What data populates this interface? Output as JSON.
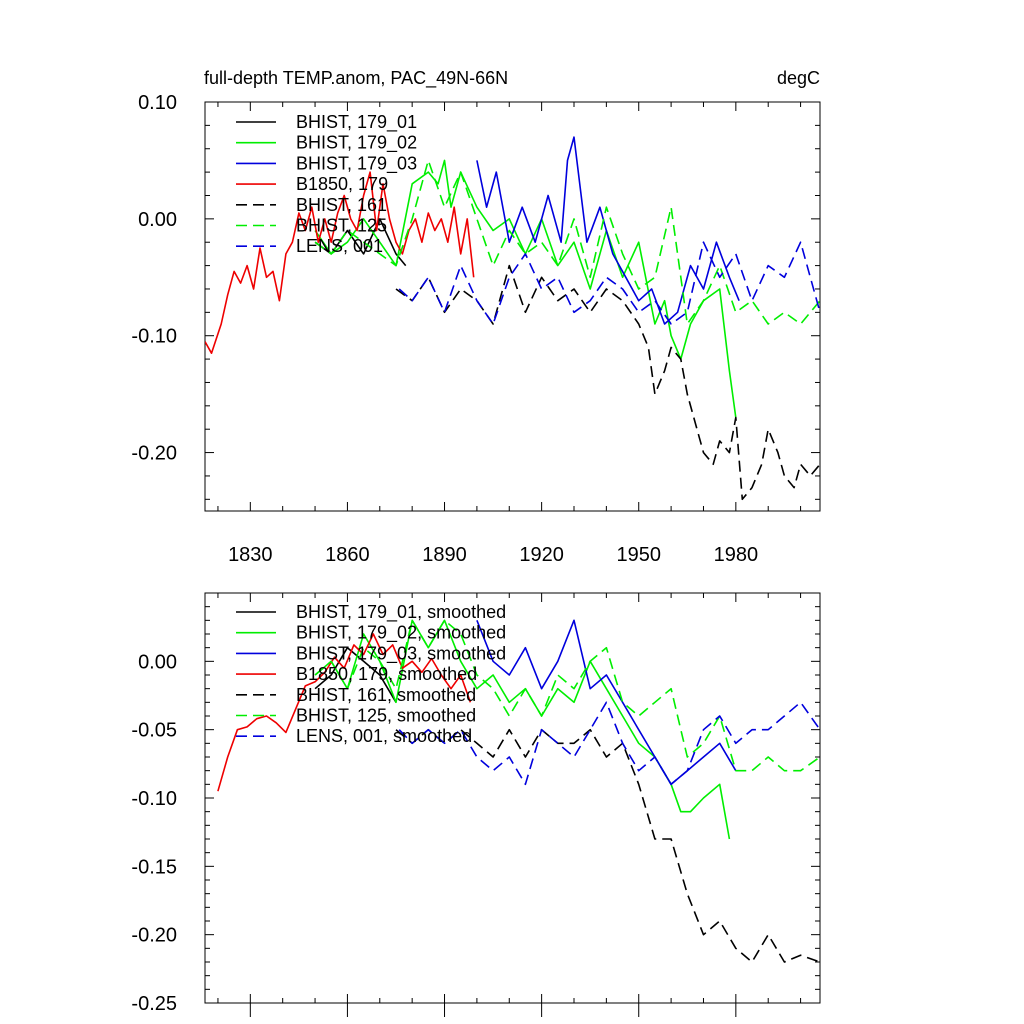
{
  "header": {
    "title_left": "full-depth TEMP.anom, PAC_49N-66N",
    "title_right": "degC"
  },
  "chart_data": [
    {
      "type": "line",
      "xlim": [
        1816,
        2006
      ],
      "ylim": [
        -0.25,
        0.1
      ],
      "x_ticks": [
        1830,
        1860,
        1890,
        1920,
        1950,
        1980
      ],
      "y_ticks": [
        0.1,
        0.0,
        -0.1,
        -0.2
      ],
      "y_tick_labels": [
        "0.10",
        "0.00",
        "-0.10",
        "-0.20"
      ],
      "legend": "top-left",
      "series": [
        {
          "name": "BHIST, 179_01",
          "color": "#000000",
          "dash": false,
          "x": [
            1850,
            1855,
            1860,
            1865,
            1870,
            1875,
            1878
          ],
          "y": [
            -0.02,
            -0.03,
            -0.01,
            -0.03,
            0.0,
            -0.03,
            -0.04
          ]
        },
        {
          "name": "BHIST, 179_02",
          "color": "#00ee00",
          "dash": false,
          "x": [
            1850,
            1855,
            1860,
            1865,
            1870,
            1875,
            1880,
            1885,
            1888,
            1890,
            1892,
            1895,
            1900,
            1905,
            1910,
            1915,
            1920,
            1925,
            1930,
            1935,
            1940,
            1945,
            1950,
            1955,
            1958,
            1960,
            1963,
            1966,
            1970,
            1975,
            1978,
            1980
          ],
          "y": [
            -0.01,
            -0.03,
            -0.02,
            0.0,
            -0.02,
            -0.04,
            0.03,
            0.04,
            0.03,
            0.05,
            0.01,
            0.04,
            0.01,
            -0.01,
            0.0,
            -0.03,
            0.0,
            -0.04,
            -0.02,
            -0.06,
            -0.01,
            -0.05,
            -0.02,
            -0.09,
            -0.07,
            -0.1,
            -0.12,
            -0.09,
            -0.07,
            -0.06,
            -0.13,
            -0.17
          ]
        },
        {
          "name": "BHIST, 179_03",
          "color": "#0000dd",
          "dash": false,
          "x": [
            1900,
            1903,
            1906,
            1910,
            1914,
            1918,
            1922,
            1926,
            1928,
            1930,
            1934,
            1938,
            1942,
            1946,
            1950,
            1954,
            1958,
            1962,
            1966,
            1970,
            1974,
            1978,
            1981
          ],
          "y": [
            0.05,
            0.01,
            0.04,
            -0.02,
            0.01,
            -0.02,
            0.02,
            -0.02,
            0.05,
            0.07,
            -0.02,
            0.01,
            -0.03,
            -0.05,
            -0.07,
            -0.06,
            -0.09,
            -0.08,
            -0.04,
            -0.06,
            -0.02,
            -0.05,
            -0.07
          ]
        },
        {
          "name": "B1850, 179",
          "color": "#ee0000",
          "dash": false,
          "x": [
            1816,
            1818,
            1821,
            1823,
            1825,
            1827,
            1829,
            1831,
            1833,
            1835,
            1837,
            1839,
            1841,
            1843,
            1845,
            1847,
            1849,
            1851,
            1853,
            1855,
            1857,
            1859,
            1861,
            1863,
            1865,
            1867,
            1869,
            1871,
            1873,
            1875,
            1877,
            1879,
            1881,
            1883,
            1885,
            1887,
            1889,
            1891,
            1893,
            1895,
            1897,
            1899
          ],
          "y": [
            -0.105,
            -0.115,
            -0.09,
            -0.065,
            -0.045,
            -0.055,
            -0.04,
            -0.06,
            -0.025,
            -0.05,
            -0.045,
            -0.07,
            -0.03,
            -0.02,
            0.005,
            -0.01,
            0.01,
            -0.02,
            0.0,
            -0.02,
            0.005,
            0.02,
            0.0,
            -0.01,
            0.02,
            0.04,
            -0.01,
            0.03,
            0.0,
            -0.02,
            -0.03,
            -0.01,
            0.0,
            -0.02,
            0.005,
            -0.01,
            0.0,
            -0.02,
            0.01,
            -0.03,
            0.0,
            -0.05
          ]
        },
        {
          "name": "BHIST, 161",
          "color": "#000000",
          "dash": true,
          "x": [
            1875,
            1880,
            1885,
            1890,
            1895,
            1900,
            1905,
            1910,
            1915,
            1920,
            1925,
            1930,
            1935,
            1940,
            1945,
            1950,
            1953,
            1955,
            1958,
            1960,
            1963,
            1965,
            1968,
            1970,
            1973,
            1975,
            1978,
            1980,
            1982,
            1985,
            1988,
            1990,
            1993,
            1995,
            1998,
            2000,
            2003,
            2006
          ],
          "y": [
            -0.06,
            -0.07,
            -0.05,
            -0.08,
            -0.06,
            -0.07,
            -0.09,
            -0.04,
            -0.08,
            -0.05,
            -0.07,
            -0.06,
            -0.08,
            -0.06,
            -0.07,
            -0.09,
            -0.11,
            -0.15,
            -0.13,
            -0.11,
            -0.12,
            -0.15,
            -0.18,
            -0.2,
            -0.21,
            -0.19,
            -0.2,
            -0.17,
            -0.24,
            -0.23,
            -0.21,
            -0.18,
            -0.2,
            -0.22,
            -0.23,
            -0.21,
            -0.22,
            -0.21
          ]
        },
        {
          "name": "BHIST, 125",
          "color": "#00ee00",
          "dash": true,
          "x": [
            1850,
            1855,
            1860,
            1865,
            1870,
            1875,
            1880,
            1885,
            1890,
            1895,
            1900,
            1905,
            1910,
            1915,
            1920,
            1925,
            1930,
            1935,
            1940,
            1945,
            1950,
            1955,
            1960,
            1965,
            1970,
            1975,
            1980,
            1985,
            1990,
            1995,
            2000,
            2006
          ],
          "y": [
            -0.02,
            -0.03,
            -0.01,
            -0.02,
            -0.03,
            -0.04,
            0.0,
            0.05,
            0.01,
            0.04,
            0.0,
            -0.04,
            -0.01,
            -0.03,
            -0.02,
            -0.04,
            0.0,
            -0.05,
            0.01,
            -0.03,
            -0.06,
            -0.05,
            0.01,
            -0.09,
            -0.07,
            -0.04,
            -0.08,
            -0.07,
            -0.09,
            -0.08,
            -0.09,
            -0.07
          ]
        },
        {
          "name": "LENS, 001",
          "color": "#0000dd",
          "dash": true,
          "x": [
            1876,
            1880,
            1885,
            1890,
            1895,
            1900,
            1905,
            1910,
            1915,
            1920,
            1925,
            1930,
            1935,
            1940,
            1945,
            1950,
            1955,
            1960,
            1965,
            1970,
            1975,
            1980,
            1985,
            1990,
            1995,
            2000,
            2006
          ],
          "y": [
            -0.06,
            -0.07,
            -0.05,
            -0.08,
            -0.04,
            -0.07,
            -0.09,
            -0.05,
            -0.03,
            -0.06,
            -0.05,
            -0.08,
            -0.07,
            -0.05,
            -0.06,
            -0.08,
            -0.07,
            -0.09,
            -0.08,
            -0.02,
            -0.05,
            -0.03,
            -0.07,
            -0.04,
            -0.05,
            -0.02,
            -0.08
          ]
        }
      ]
    },
    {
      "type": "line",
      "xlim": [
        1816,
        2006
      ],
      "ylim": [
        -0.25,
        0.05
      ],
      "x_ticks": [
        1830,
        1860,
        1890,
        1920,
        1950,
        1980
      ],
      "y_ticks": [
        0.0,
        -0.05,
        -0.1,
        -0.15,
        -0.2,
        -0.25
      ],
      "y_tick_labels": [
        "0.00",
        "-0.05",
        "-0.10",
        "-0.15",
        "-0.20",
        "-0.25"
      ],
      "legend": "top-left",
      "series": [
        {
          "name": "BHIST, 179_01, smoothed",
          "color": "#000000",
          "dash": false,
          "x": [
            1850,
            1855,
            1860,
            1865,
            1870,
            1875
          ],
          "y": [
            -0.02,
            -0.01,
            0.01,
            0.0,
            -0.01,
            -0.03
          ]
        },
        {
          "name": "BHIST, 179_02, smoothed",
          "color": "#00ee00",
          "dash": false,
          "x": [
            1850,
            1855,
            1860,
            1865,
            1870,
            1875,
            1880,
            1885,
            1890,
            1895,
            1900,
            1905,
            1910,
            1915,
            1920,
            1925,
            1930,
            1935,
            1940,
            1945,
            1950,
            1955,
            1960,
            1963,
            1966,
            1970,
            1975,
            1978
          ],
          "y": [
            -0.01,
            0.0,
            -0.02,
            0.02,
            0.0,
            -0.03,
            0.03,
            0.01,
            0.03,
            0.0,
            -0.02,
            -0.01,
            -0.03,
            -0.02,
            -0.04,
            -0.02,
            -0.03,
            0.0,
            -0.02,
            -0.04,
            -0.06,
            -0.07,
            -0.09,
            -0.11,
            -0.11,
            -0.1,
            -0.09,
            -0.13
          ]
        },
        {
          "name": "BHIST, 179_03, smoothed",
          "color": "#0000dd",
          "dash": false,
          "x": [
            1900,
            1905,
            1910,
            1915,
            1920,
            1925,
            1930,
            1935,
            1940,
            1945,
            1950,
            1955,
            1960,
            1965,
            1970,
            1975,
            1980
          ],
          "y": [
            0.03,
            0.0,
            -0.01,
            0.01,
            -0.02,
            0.0,
            0.03,
            -0.02,
            -0.01,
            -0.03,
            -0.05,
            -0.07,
            -0.09,
            -0.08,
            -0.07,
            -0.06,
            -0.08
          ]
        },
        {
          "name": "B1850, 179, smoothed",
          "color": "#ee0000",
          "dash": false,
          "x": [
            1820,
            1823,
            1826,
            1829,
            1832,
            1835,
            1838,
            1841,
            1844,
            1847,
            1850,
            1853,
            1856,
            1859,
            1862,
            1865,
            1868,
            1871,
            1874,
            1877,
            1880,
            1883,
            1886,
            1889,
            1892,
            1895,
            1898
          ],
          "y": [
            -0.095,
            -0.07,
            -0.05,
            -0.048,
            -0.042,
            -0.04,
            -0.045,
            -0.052,
            -0.035,
            -0.018,
            -0.015,
            -0.008,
            0.003,
            -0.005,
            0.012,
            0.005,
            0.02,
            0.005,
            0.012,
            -0.005,
            0.0,
            -0.008,
            0.002,
            -0.01,
            -0.02,
            -0.01,
            -0.03
          ]
        },
        {
          "name": "BHIST, 161, smoothed",
          "color": "#000000",
          "dash": true,
          "x": [
            1875,
            1880,
            1885,
            1890,
            1895,
            1900,
            1905,
            1910,
            1915,
            1920,
            1925,
            1930,
            1935,
            1940,
            1945,
            1950,
            1955,
            1960,
            1965,
            1970,
            1975,
            1980,
            1985,
            1990,
            1995,
            2000,
            2006
          ],
          "y": [
            -0.05,
            -0.06,
            -0.05,
            -0.06,
            -0.05,
            -0.06,
            -0.07,
            -0.05,
            -0.07,
            -0.05,
            -0.06,
            -0.06,
            -0.05,
            -0.07,
            -0.06,
            -0.09,
            -0.13,
            -0.13,
            -0.17,
            -0.2,
            -0.19,
            -0.21,
            -0.22,
            -0.2,
            -0.22,
            -0.215,
            -0.22
          ]
        },
        {
          "name": "BHIST, 125, smoothed",
          "color": "#00ee00",
          "dash": true,
          "x": [
            1850,
            1855,
            1860,
            1865,
            1870,
            1875,
            1880,
            1885,
            1890,
            1895,
            1900,
            1905,
            1910,
            1915,
            1920,
            1925,
            1930,
            1935,
            1940,
            1945,
            1950,
            1955,
            1960,
            1965,
            1970,
            1975,
            1980,
            1985,
            1990,
            1995,
            2000,
            2006
          ],
          "y": [
            -0.01,
            0.0,
            -0.02,
            0.01,
            0.0,
            -0.02,
            0.03,
            0.01,
            0.03,
            0.02,
            -0.01,
            -0.02,
            -0.04,
            -0.02,
            -0.04,
            -0.01,
            -0.02,
            0.0,
            0.01,
            -0.03,
            -0.04,
            -0.03,
            -0.02,
            -0.07,
            -0.06,
            -0.04,
            -0.08,
            -0.08,
            -0.07,
            -0.08,
            -0.08,
            -0.07
          ]
        },
        {
          "name": "LENS, 001, smoothed",
          "color": "#0000dd",
          "dash": true,
          "x": [
            1876,
            1880,
            1885,
            1890,
            1895,
            1900,
            1905,
            1910,
            1915,
            1920,
            1925,
            1930,
            1935,
            1940,
            1945,
            1950,
            1955,
            1960,
            1965,
            1970,
            1975,
            1980,
            1985,
            1990,
            1995,
            2000,
            2006
          ],
          "y": [
            -0.05,
            -0.06,
            -0.05,
            -0.06,
            -0.05,
            -0.07,
            -0.08,
            -0.07,
            -0.09,
            -0.05,
            -0.06,
            -0.07,
            -0.05,
            -0.03,
            -0.06,
            -0.08,
            -0.07,
            -0.09,
            -0.08,
            -0.05,
            -0.04,
            -0.06,
            -0.05,
            -0.05,
            -0.04,
            -0.03,
            -0.05
          ]
        }
      ]
    }
  ]
}
